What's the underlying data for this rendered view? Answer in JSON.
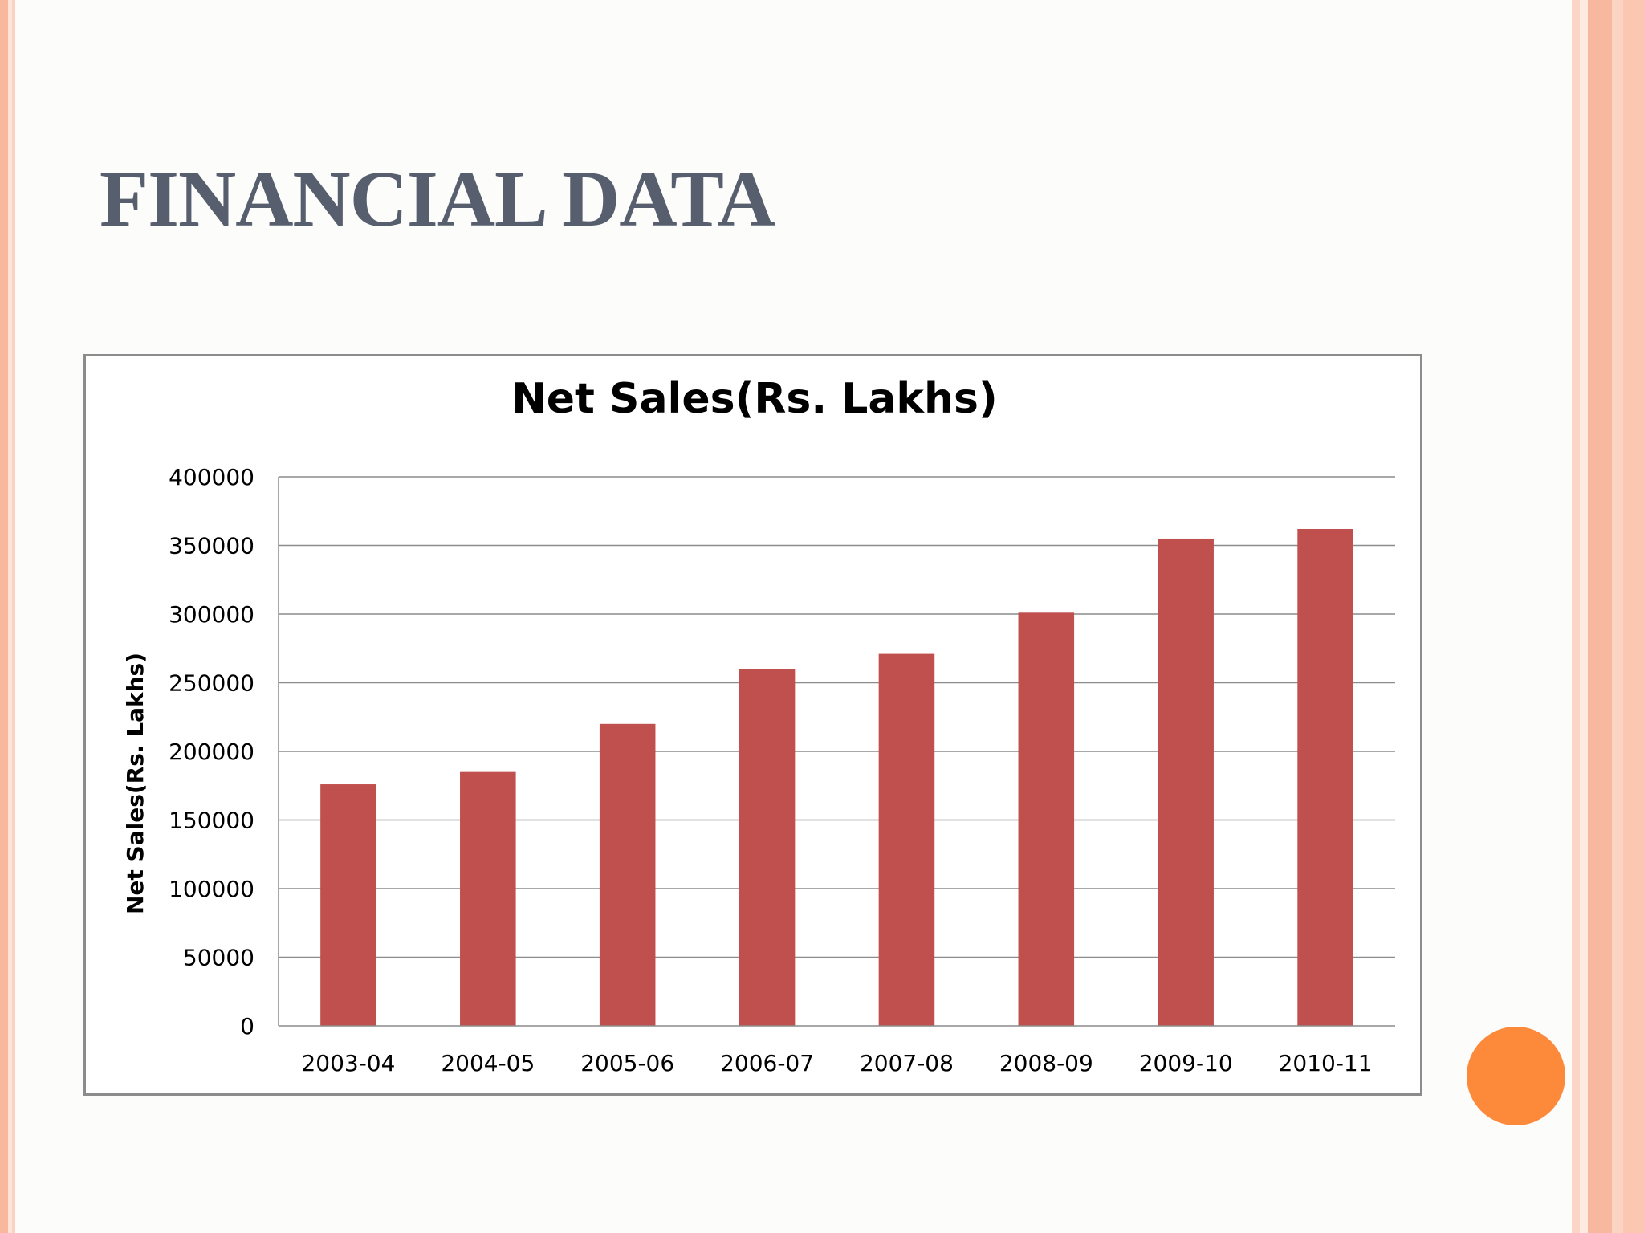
{
  "slide": {
    "title": "FINANCIAL DATA"
  },
  "colors": {
    "bar": "#c0504d",
    "title": "#575f6e",
    "accent_dot": "#fd8a3a",
    "stripe": "#f9b79e"
  },
  "chart_data": {
    "type": "bar",
    "title": "Net Sales(Rs. Lakhs)",
    "xlabel": "",
    "ylabel": "Net Sales(Rs. Lakhs)",
    "categories": [
      "2003-04",
      "2004-05",
      "2005-06",
      "2006-07",
      "2007-08",
      "2008-09",
      "2009-10",
      "2010-11"
    ],
    "values": [
      176000,
      185000,
      220000,
      260000,
      271000,
      301000,
      355000,
      362000
    ],
    "ylim": [
      0,
      400000
    ],
    "yticks": [
      0,
      50000,
      100000,
      150000,
      200000,
      250000,
      300000,
      350000,
      400000
    ],
    "grid": true,
    "legend": "none"
  }
}
